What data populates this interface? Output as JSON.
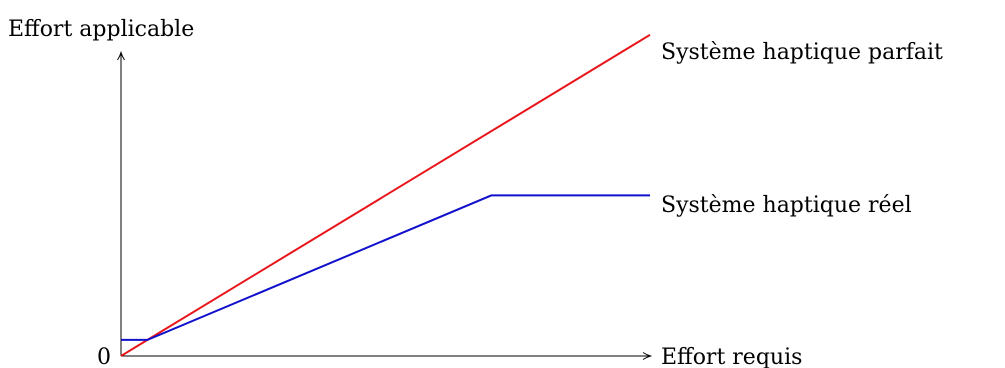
{
  "chart_data": {
    "type": "line",
    "title": "",
    "xlabel": "Effort requis",
    "ylabel": "Effort applicable",
    "origin_label": "0",
    "xlim": [
      0,
      10
    ],
    "ylim": [
      0,
      6.5
    ],
    "grid": false,
    "legend": "none",
    "series": [
      {
        "name": "Système haptique parfait",
        "color": "#e8141a",
        "x": [
          0,
          10
        ],
        "y": [
          0,
          6
        ]
      },
      {
        "name": "Système haptique réel",
        "color": "#1010cc",
        "x": [
          0,
          0.5,
          7,
          10
        ],
        "y": [
          0.3,
          0.3,
          3.0,
          3.0
        ]
      }
    ]
  }
}
